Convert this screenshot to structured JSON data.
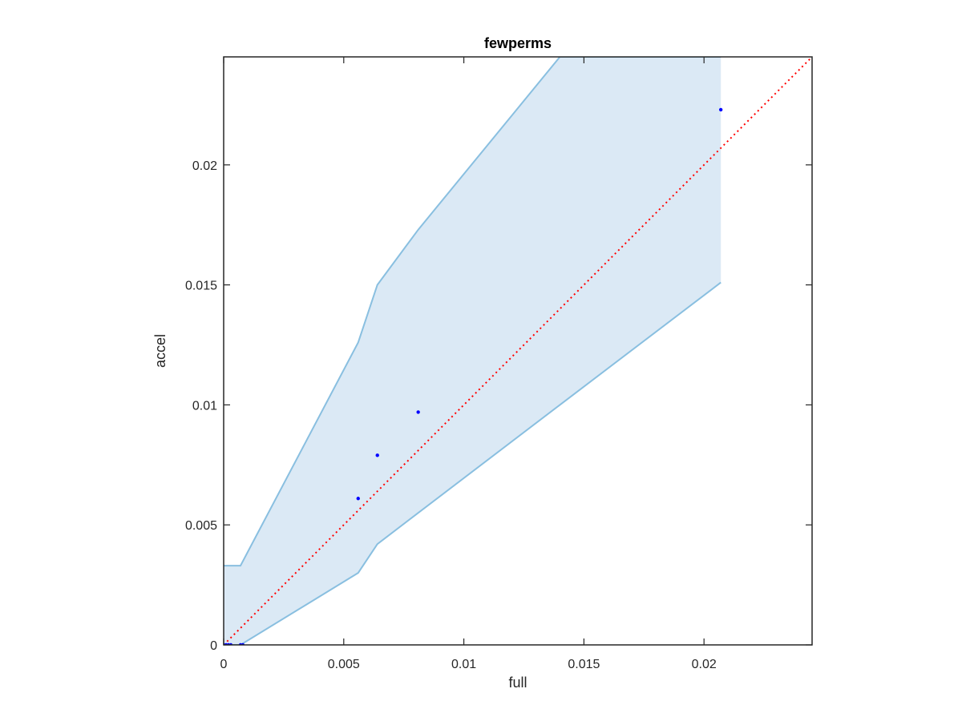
{
  "chart_data": {
    "type": "scatter",
    "title": "fewperms",
    "xlabel": "full",
    "ylabel": "accel",
    "xlim": [
      0,
      0.0245
    ],
    "ylim": [
      0,
      0.0245
    ],
    "xticks": [
      0,
      0.005,
      0.01,
      0.015,
      0.02
    ],
    "xtick_labels": [
      "0",
      "0.005",
      "0.01",
      "0.015",
      "0.02"
    ],
    "yticks": [
      0,
      0.005,
      0.01,
      0.015,
      0.02
    ],
    "ytick_labels": [
      "0",
      "0.005",
      "0.01",
      "0.015",
      "0.02"
    ],
    "grid": false,
    "points": {
      "x": [
        0,
        0.0001,
        0.0002,
        0.0003,
        0.0007,
        0.0008,
        0.0056,
        0.0064,
        0.0081,
        0.0207
      ],
      "y": [
        0,
        0,
        0,
        0,
        0,
        0,
        0.0061,
        0.0079,
        0.0097,
        0.0223
      ],
      "color": "#0000ff"
    },
    "confidence_band": {
      "x": [
        0,
        0.0007,
        0.0056,
        0.0064,
        0.0081,
        0.014,
        0.0207
      ],
      "upper": [
        0.0033,
        0.0033,
        0.0126,
        0.015,
        0.0173,
        0.0245,
        0.0245
      ],
      "lower": [
        0,
        0,
        0.003,
        0.0042,
        0.0055,
        0.01,
        0.0151
      ],
      "fill_color": "#dbe9f5",
      "line_color": "#89bfe0"
    },
    "reference_line": {
      "from": [
        0,
        0
      ],
      "to": [
        0.0245,
        0.0245
      ],
      "color": "#ff0000",
      "style": "dotted"
    }
  }
}
